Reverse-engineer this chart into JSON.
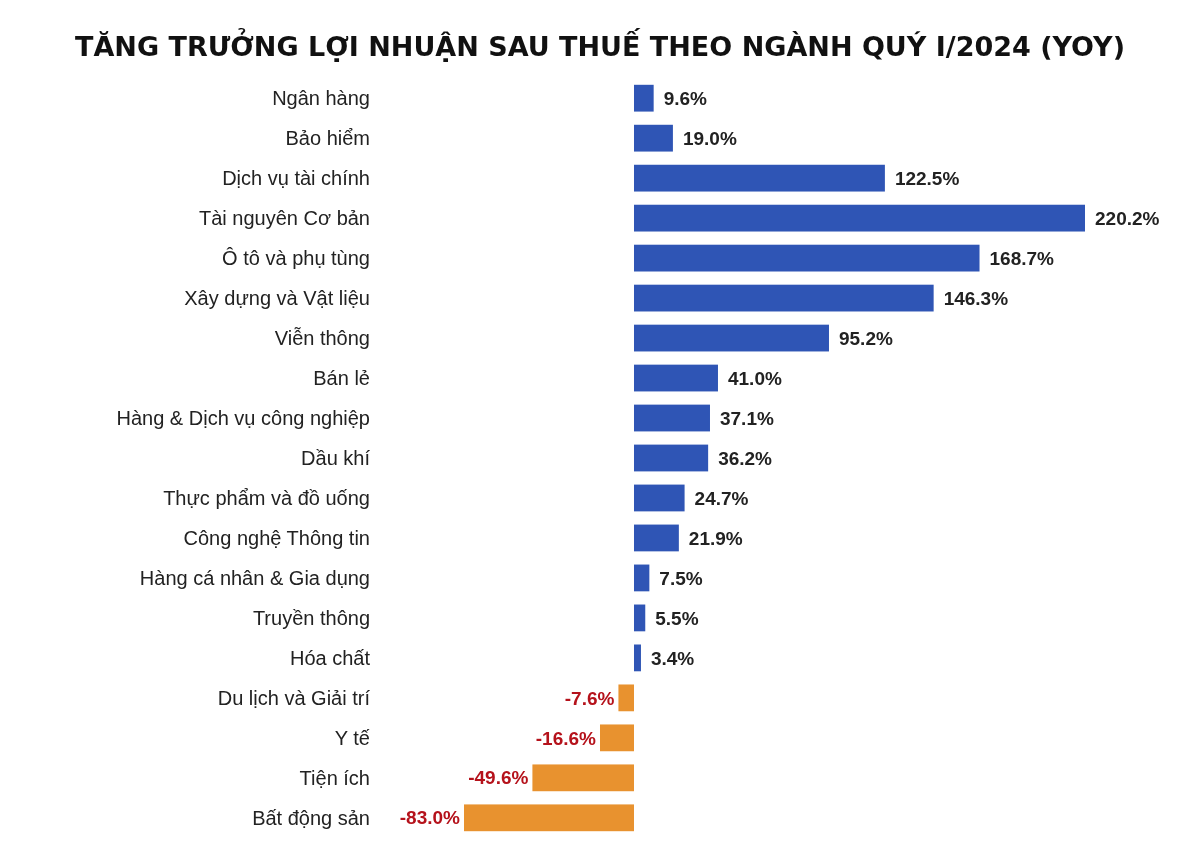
{
  "chart_data": {
    "type": "bar",
    "orientation": "horizontal",
    "title": "TĂNG TRƯỞNG LỢI NHUẬN SAU THUẾ THEO NGÀNH QUÝ I/2024 (YOY)",
    "categories": [
      "Ngân hàng",
      "Bảo hiểm",
      "Dịch vụ tài chính",
      "Tài nguyên Cơ bản",
      "Ô tô và phụ tùng",
      "Xây dựng và Vật liệu",
      "Viễn thông",
      "Bán lẻ",
      "Hàng & Dịch vụ công nghiệp",
      "Dầu khí",
      "Thực phẩm và đồ uống",
      "Công nghệ Thông tin",
      "Hàng cá nhân & Gia dụng",
      "Truyền thông",
      "Hóa chất",
      "Du lịch và Giải trí",
      "Y tế",
      "Tiện ích",
      "Bất động sản"
    ],
    "values": [
      9.6,
      19.0,
      122.5,
      220.2,
      168.7,
      146.3,
      95.2,
      41.0,
      37.1,
      36.2,
      24.7,
      21.9,
      7.5,
      5.5,
      3.4,
      -7.6,
      -16.6,
      -49.6,
      -83.0
    ],
    "value_labels": [
      "9.6%",
      "19.0%",
      "122.5%",
      "220.2%",
      "168.7%",
      "146.3%",
      "95.2%",
      "41.0%",
      "37.1%",
      "36.2%",
      "24.7%",
      "21.9%",
      "7.5%",
      "5.5%",
      "3.4%",
      "-7.6%",
      "-16.6%",
      "-49.6%",
      "-83.0%"
    ],
    "colors": [
      "#2f55b5",
      "#2f55b5",
      "#2f55b5",
      "#2f55b5",
      "#2f55b5",
      "#2f55b5",
      "#2f55b5",
      "#2f55b5",
      "#2f55b5",
      "#2f55b5",
      "#2f55b5",
      "#2f55b5",
      "#2f55b5",
      "#2f55b5",
      "#2f55b5",
      "#e8922f",
      "#e8922f",
      "#e8922f",
      "#e8922f"
    ]
  }
}
